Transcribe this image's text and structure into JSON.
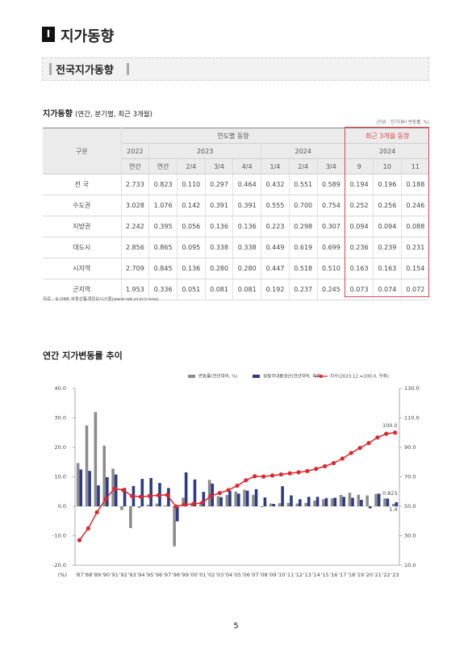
{
  "header": {
    "number": "Ⅰ",
    "title": "지가동향"
  },
  "section": {
    "title": "전국지가동향"
  },
  "table": {
    "title": "지가동향",
    "title_note": "(연간, 분기별, 최근 3개월)",
    "unit": "(단위 : 전기대비 변동률, %)",
    "stub": "구분",
    "groups": [
      "연도별 동향",
      "최근 3개월 동향"
    ],
    "years": [
      "2022",
      "2023",
      "2024",
      "2024"
    ],
    "periods": [
      "연간",
      "연간",
      "2/4",
      "3/4",
      "4/4",
      "1/4",
      "2/4",
      "3/4",
      "9",
      "10",
      "11"
    ],
    "rows": [
      {
        "name": "전 국",
        "values": [
          "2.733",
          "0.823",
          "0.110",
          "0.297",
          "0.464",
          "0.432",
          "0.551",
          "0.589",
          "0.194",
          "0.196",
          "0.188"
        ]
      },
      {
        "name": "수도권",
        "values": [
          "3.028",
          "1.076",
          "0.142",
          "0.391",
          "0.391",
          "0.555",
          "0.700",
          "0.754",
          "0.252",
          "0.256",
          "0.246"
        ]
      },
      {
        "name": "지방권",
        "values": [
          "2.242",
          "0.395",
          "0.056",
          "0.136",
          "0.136",
          "0.223",
          "0.298",
          "0.307",
          "0.094",
          "0.094",
          "0.088"
        ]
      },
      {
        "name": "대도시",
        "values": [
          "2.856",
          "0.865",
          "0.095",
          "0.338",
          "0.338",
          "0.449",
          "0.619",
          "0.699",
          "0.236",
          "0.239",
          "0.231"
        ]
      },
      {
        "name": "시지역",
        "values": [
          "2.709",
          "0.845",
          "0.136",
          "0.280",
          "0.280",
          "0.447",
          "0.518",
          "0.510",
          "0.163",
          "0.163",
          "0.154"
        ]
      },
      {
        "name": "군지역",
        "values": [
          "1.953",
          "0.336",
          "0.051",
          "0.081",
          "0.081",
          "0.192",
          "0.237",
          "0.245",
          "0.073",
          "0.074",
          "0.072"
        ]
      }
    ]
  },
  "source": "자료 : R-ONE 부동산통계정보시스템(www.reb.or.kr/r-one)",
  "chart_data": {
    "type": "bar",
    "title": "연간 지가변동률 추이",
    "x_label": "(%)",
    "categories": [
      "'87",
      "'88",
      "'89",
      "'90",
      "'91",
      "'92",
      "'93",
      "'94",
      "'95",
      "'96",
      "'97",
      "'98",
      "'99",
      "'00",
      "'01",
      "'02",
      "'03",
      "'04",
      "'05",
      "'06",
      "'07",
      "'08",
      "'09",
      "'10",
      "'11",
      "'12",
      "'13",
      "'14",
      "'15",
      "'16",
      "'17",
      "'18",
      "'19",
      "'20",
      "'21",
      "'22",
      "'23"
    ],
    "series": [
      {
        "name": "변동률(전년대비, %)",
        "color": "#8c8c8c",
        "values": [
          14.67,
          27.47,
          31.97,
          20.58,
          12.78,
          -1.27,
          -7.38,
          -0.57,
          0.55,
          0.95,
          0.31,
          -13.6,
          2.94,
          0.67,
          1.32,
          8.98,
          3.43,
          3.86,
          4.98,
          5.61,
          3.88,
          -0.31,
          0.96,
          1.05,
          1.17,
          0.96,
          1.14,
          1.96,
          2.4,
          2.7,
          3.88,
          4.58,
          3.92,
          3.68,
          4.17,
          2.73,
          0.823
        ]
      },
      {
        "name": "실질국내총생산(전년대비, 좌축)",
        "color": "#2b3a8c",
        "values": [
          12.5,
          12.0,
          7.1,
          9.9,
          10.8,
          6.2,
          6.9,
          9.3,
          9.6,
          7.9,
          6.2,
          -5.1,
          11.5,
          9.1,
          4.9,
          7.7,
          3.1,
          5.2,
          4.3,
          5.3,
          5.8,
          3.0,
          0.8,
          6.8,
          3.7,
          2.4,
          3.2,
          3.2,
          2.8,
          2.9,
          3.2,
          2.9,
          2.2,
          -0.7,
          4.3,
          2.6,
          1.4
        ]
      },
      {
        "name": "지수(2023.12.=100.0, 우축)",
        "type": "line",
        "axis": "y2",
        "color": "#e0262b",
        "values": [
          27,
          35,
          46,
          55,
          62,
          61,
          57,
          56.5,
          57,
          57.5,
          57.7,
          49.9,
          51.3,
          51.6,
          52.3,
          57,
          59,
          61,
          64,
          67.7,
          70.4,
          70.2,
          70.9,
          71.6,
          72.4,
          73.1,
          73.9,
          75.4,
          77.2,
          79.3,
          82.4,
          86.2,
          89.6,
          92.9,
          96.7,
          99.2,
          100
        ],
        "value_labels": [
          null,
          null,
          null,
          null,
          null,
          null,
          null,
          null,
          null,
          null,
          null,
          null,
          null,
          null,
          null,
          null,
          null,
          null,
          null,
          null,
          null,
          null,
          null,
          null,
          null,
          null,
          null,
          null,
          null,
          null,
          null,
          null,
          null,
          null,
          null,
          null,
          "100.0"
        ]
      }
    ],
    "ylim": [
      -20,
      40
    ],
    "yticks": [
      {
        "value": -20,
        "label": "-20.0"
      },
      {
        "value": -10,
        "label": "-10.0"
      },
      {
        "value": 0,
        "label": "0.0"
      },
      {
        "value": 10,
        "label": "10.0"
      },
      {
        "value": 20,
        "label": "20.0"
      },
      {
        "value": 30,
        "label": "30.0"
      },
      {
        "value": 40,
        "label": "40.0"
      }
    ],
    "y2lim": [
      10,
      130
    ],
    "y2ticks": [
      {
        "value": 10,
        "label": "10.0"
      },
      {
        "value": 30,
        "label": "30.0"
      },
      {
        "value": 50,
        "label": "50.0"
      },
      {
        "value": 70,
        "label": "70.0"
      },
      {
        "value": 90,
        "label": "90.0"
      },
      {
        "value": 110,
        "label": "110.0"
      },
      {
        "value": 130,
        "label": "130.0"
      }
    ],
    "grid": false
  },
  "page_number": "5"
}
